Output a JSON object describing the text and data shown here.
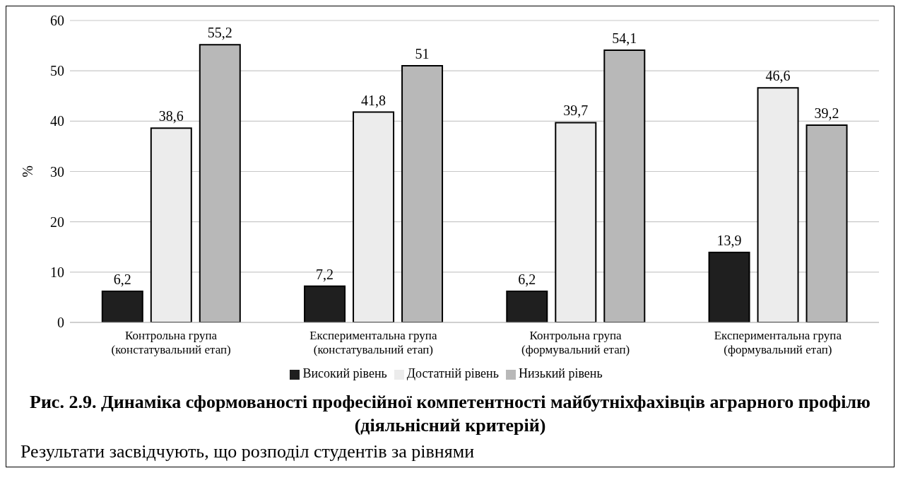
{
  "chart_data": {
    "type": "bar",
    "title": "Рис. 2.9. Динаміка сформованості професійної компетентності майбутніхфахівців аграрного профілю (діяльнісний критерій)",
    "ylabel": "%",
    "categories": [
      "Контрольна група (констатувальний етап)",
      "Експериментальна група (констатувальний етап)",
      "Контрольна група (формувальний етап)",
      "Експериментальна група (формувальний етап)"
    ],
    "series": [
      {
        "name": "Високий рівень",
        "color": "#1f1f1f",
        "values": [
          6.2,
          7.2,
          6.2,
          13.9
        ],
        "value_labels": [
          "6,2",
          "7,2",
          "6,2",
          "13,9"
        ]
      },
      {
        "name": "Достатній рівень",
        "color": "#ececec",
        "values": [
          38.6,
          41.8,
          39.7,
          46.6
        ],
        "value_labels": [
          "38,6",
          "41,8",
          "39,7",
          "46,6"
        ]
      },
      {
        "name": "Низький рівень",
        "color": "#b8b8b8",
        "values": [
          55.2,
          51,
          54.1,
          39.2
        ],
        "value_labels": [
          "55,2",
          "51",
          "54,1",
          "39,2"
        ]
      }
    ],
    "ylim": [
      0,
      60
    ],
    "yticks": [
      0,
      10,
      20,
      30,
      40,
      50,
      60
    ],
    "grid": "y",
    "legend": "bottom",
    "annotations": [
      "Результати засвідчують, що розподіл студентів за рівнями"
    ]
  }
}
